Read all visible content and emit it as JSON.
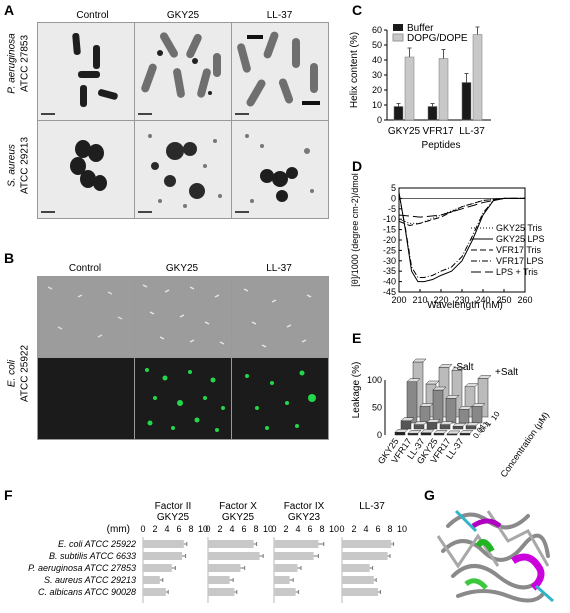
{
  "panels": {
    "A": {
      "label": "A",
      "columns": [
        "Control",
        "GKY25",
        "LL-37"
      ],
      "rows": [
        {
          "species": "P. aeruginosa",
          "strain": "ATCC 27853"
        },
        {
          "species": "S. aureus",
          "strain": "ATCC 29213"
        }
      ]
    },
    "B": {
      "label": "B",
      "columns": [
        "Control",
        "GKY25",
        "LL-37"
      ],
      "row": {
        "species": "E. coli",
        "strain": "ATCC 25922"
      }
    },
    "C": {
      "label": "C"
    },
    "D": {
      "label": "D"
    },
    "E": {
      "label": "E"
    },
    "F": {
      "label": "F"
    },
    "G": {
      "label": "G"
    }
  },
  "chart_data": [
    {
      "id": "C",
      "type": "bar",
      "categories": [
        "GKY25",
        "VFR17",
        "LL-37"
      ],
      "series": [
        {
          "name": "Buffer",
          "values": [
            9,
            9,
            25
          ],
          "errors": [
            2,
            2,
            6
          ],
          "color": "#1a1a1a"
        },
        {
          "name": "DOPG/DOPE",
          "values": [
            42,
            41,
            57
          ],
          "errors": [
            6,
            6,
            5
          ],
          "color": "#c8c8c8"
        }
      ],
      "xlabel": "Peptides",
      "ylabel": "Helix content (%)",
      "ylim": [
        0,
        60
      ],
      "yticks": [
        0,
        10,
        20,
        30,
        40,
        50,
        60
      ],
      "legend": "top-left"
    },
    {
      "id": "D",
      "type": "line",
      "xlabel": "Wavelength (nM)",
      "ylabel": "[θ]/1000 (degree cm-2)/dmol",
      "xlim": [
        200,
        260
      ],
      "ylim": [
        -45,
        5
      ],
      "xticks": [
        200,
        210,
        220,
        230,
        240,
        250,
        260
      ],
      "yticks": [
        5,
        0,
        -5,
        -10,
        -15,
        -20,
        -25,
        -30,
        -35,
        -40,
        -45
      ],
      "legend": "right",
      "series": [
        {
          "name": "GKY25 Tris",
          "dash": "1,2",
          "x": [
            200,
            205,
            210,
            220,
            230,
            240,
            250,
            260
          ],
          "y": [
            -10,
            -12,
            -12,
            -8,
            -4,
            -1,
            0,
            0
          ]
        },
        {
          "name": "GKY25 LPS",
          "dash": "",
          "x": [
            200,
            203,
            206,
            209,
            212,
            216,
            220,
            225,
            230,
            235,
            240,
            245,
            250,
            260
          ],
          "y": [
            3,
            -15,
            -35,
            -40,
            -40,
            -39,
            -37,
            -35,
            -30,
            -20,
            -8,
            -1,
            0,
            0
          ]
        },
        {
          "name": "VFR17 Tris",
          "dash": "6,3",
          "x": [
            200,
            205,
            210,
            220,
            230,
            240,
            250,
            260
          ],
          "y": [
            -11,
            -13,
            -12,
            -9,
            -4,
            -1,
            0,
            0
          ]
        },
        {
          "name": "VFR17 LPS",
          "dash": "6,2,1,2",
          "x": [
            200,
            203,
            206,
            209,
            212,
            216,
            220,
            225,
            230,
            235,
            240,
            245,
            250,
            260
          ],
          "y": [
            2,
            -14,
            -33,
            -38,
            -38,
            -37,
            -35,
            -33,
            -28,
            -18,
            -7,
            -1,
            0,
            0
          ]
        },
        {
          "name": "LPS + Tris",
          "dash": "10,4",
          "x": [
            200,
            210,
            220,
            230,
            240,
            250,
            260
          ],
          "y": [
            -8,
            -9,
            -8,
            -5,
            -2,
            0,
            0
          ]
        }
      ]
    },
    {
      "id": "E",
      "type": "bar",
      "ylabel": "Leakage (%)",
      "zlabel": "Concentration (µM)",
      "yticks": [
        0,
        50,
        100
      ],
      "categories": [
        "GKY25",
        "VFR17",
        "LL-37",
        "GKY25",
        "VFR17",
        "LL-37"
      ],
      "groups": [
        "-Salt",
        "+Salt"
      ],
      "concentrations": [
        0.01,
        0.1,
        1,
        10
      ],
      "series": [
        {
          "name": "0.01",
          "values": [
            5,
            3,
            4,
            3,
            2,
            3
          ]
        },
        {
          "name": "0.1",
          "values": [
            15,
            8,
            12,
            8,
            5,
            6
          ]
        },
        {
          "name": "1",
          "values": [
            75,
            30,
            60,
            45,
            25,
            30
          ]
        },
        {
          "name": "10",
          "values": [
            100,
            60,
            90,
            85,
            55,
            70
          ]
        }
      ]
    },
    {
      "id": "F",
      "type": "bar",
      "unit": "(mm)",
      "xticks": [
        0,
        2,
        4,
        6,
        8,
        10
      ],
      "xlim": [
        0,
        10
      ],
      "organisms": [
        "E. coli ATCC 25922",
        "B. subtilis ATCC 6633",
        "P. aeruginosa ATCC 27853",
        "S. aureus ATCC 29213",
        "C. albicans ATCC 90028"
      ],
      "panels": [
        {
          "title1": "Factor II",
          "title2": "GKY25",
          "values": [
            6.8,
            6.5,
            4.8,
            2.8,
            3.8
          ],
          "errors": [
            0.5,
            0.6,
            0.6,
            0.5,
            0.4
          ]
        },
        {
          "title1": "Factor X",
          "title2": "GKY25",
          "values": [
            7.6,
            8.6,
            5.4,
            3.6,
            4.4
          ],
          "errors": [
            0.5,
            0.6,
            0.7,
            0.6,
            0.4
          ]
        },
        {
          "title1": "Factor IX",
          "title2": "GKY23",
          "values": [
            7.4,
            6.6,
            3.9,
            2.6,
            3.6
          ],
          "errors": [
            0.9,
            0.8,
            0.6,
            0.6,
            0.5
          ]
        },
        {
          "title1": "LL-37",
          "title2": "",
          "values": [
            8.2,
            7.6,
            4.6,
            5.3,
            6.0
          ],
          "errors": [
            0.4,
            0.4,
            0.5,
            0.4,
            0.4
          ]
        }
      ]
    }
  ]
}
